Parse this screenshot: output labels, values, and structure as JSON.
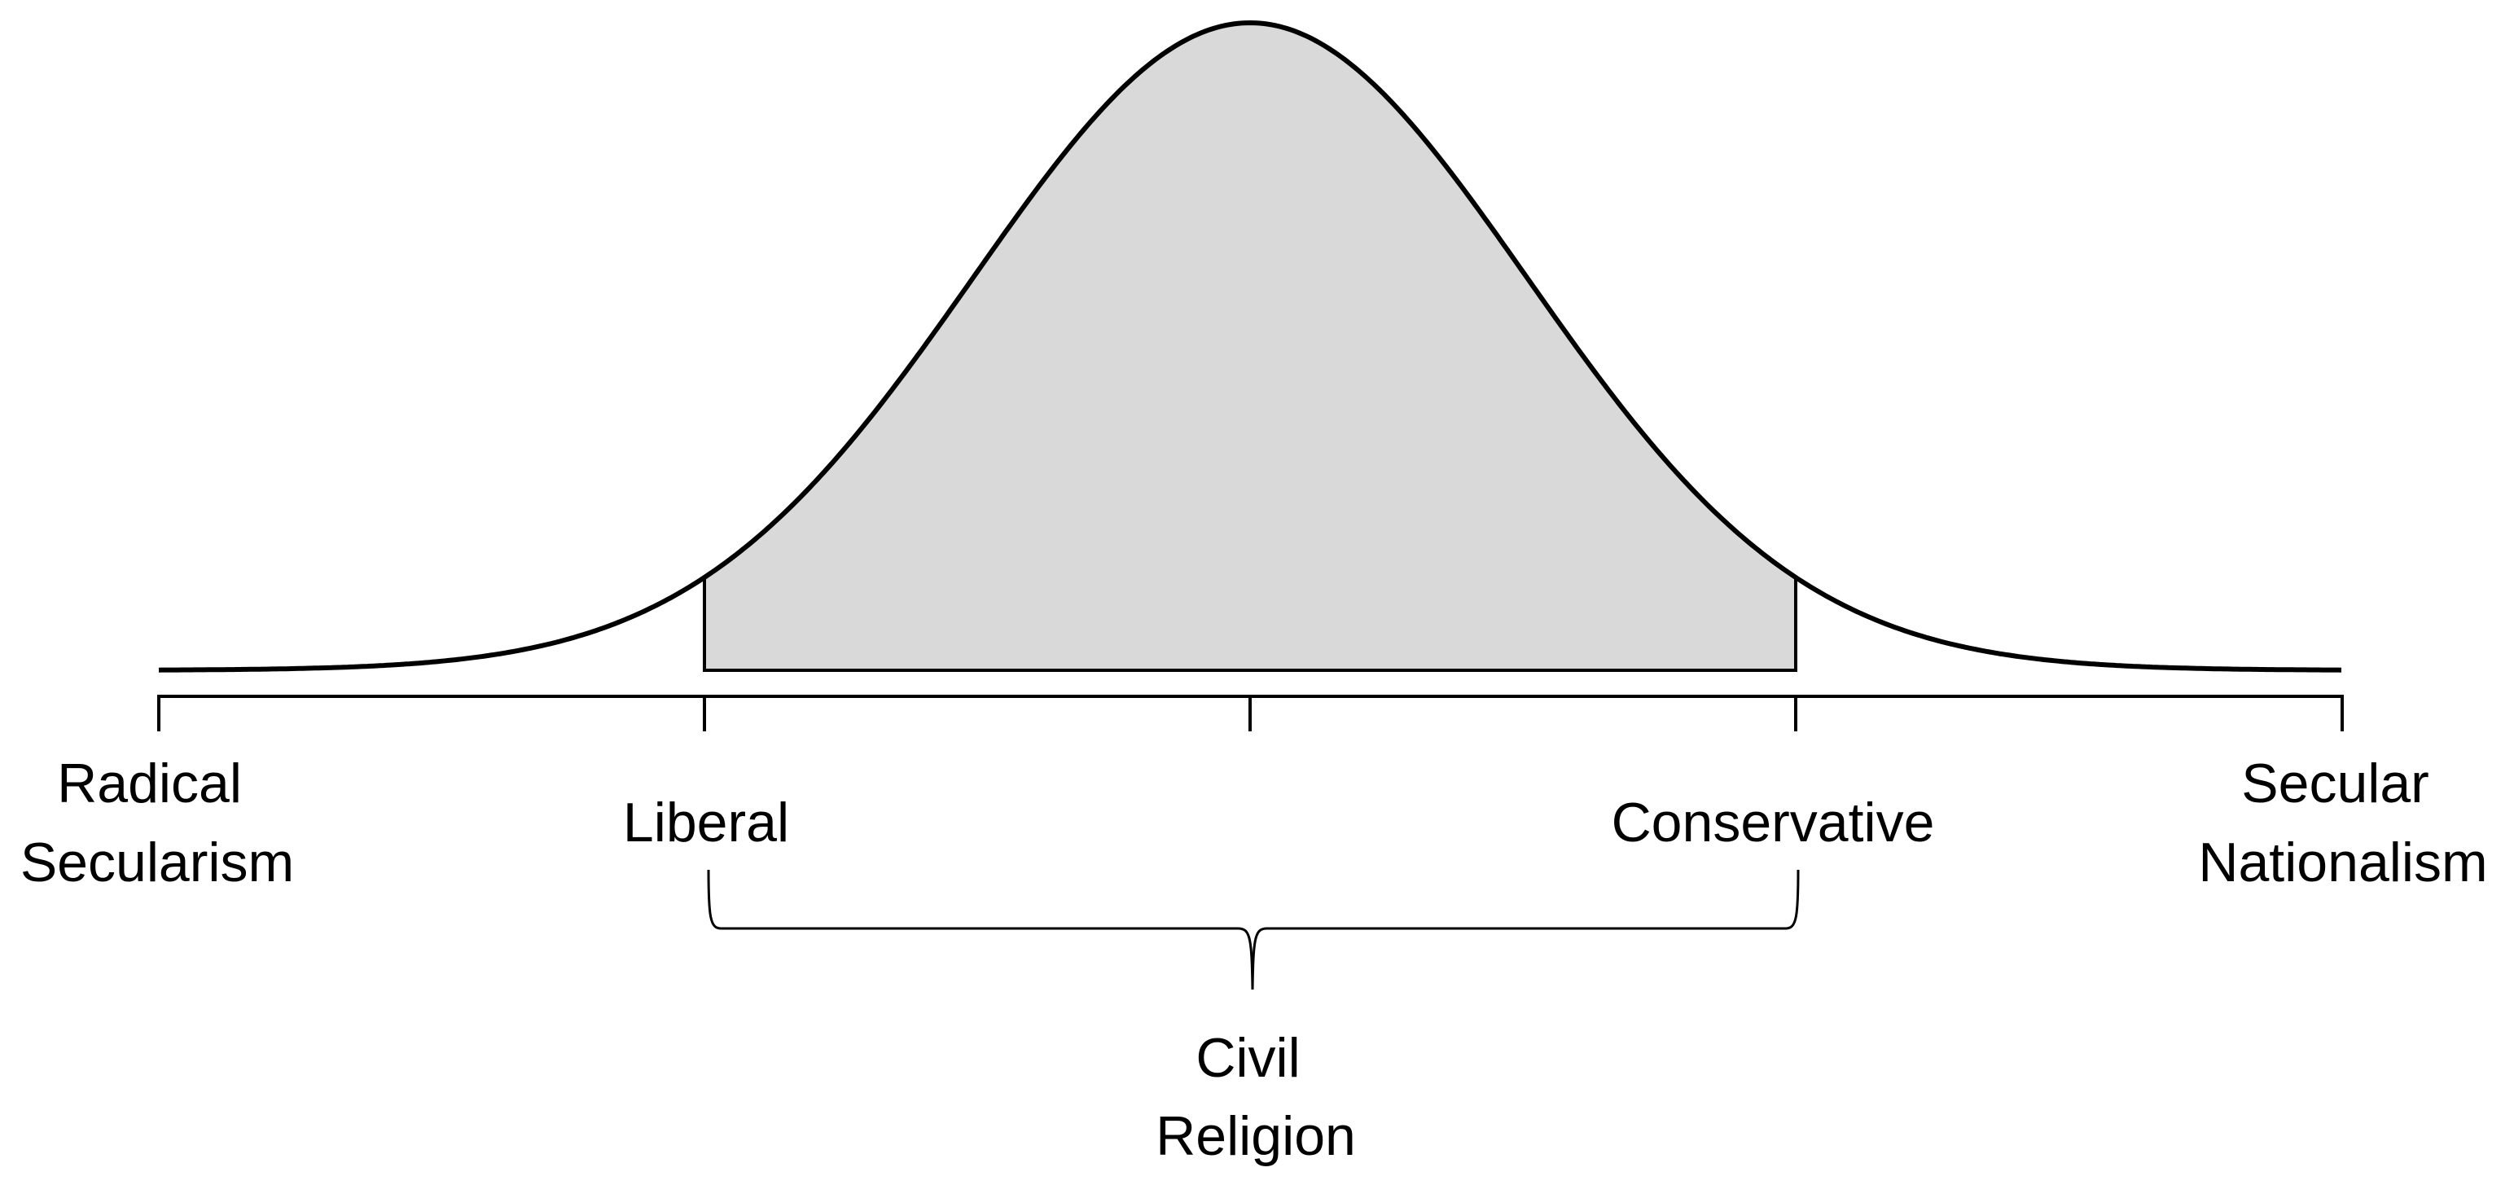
{
  "diagram": {
    "left_end_label": {
      "line1": "Radical",
      "line2": "Secularism"
    },
    "right_end_label": {
      "line1": "Secular",
      "line2": "Nationalism"
    },
    "inner_left_label": "Liberal",
    "inner_right_label": "Conservative",
    "brace_label": {
      "line1": "Civil",
      "line2": "Religion"
    }
  },
  "colors": {
    "curve_stroke": "#000000",
    "shaded_fill": "#d9d9d9",
    "axis_stroke": "#000000",
    "text": "#000000"
  }
}
